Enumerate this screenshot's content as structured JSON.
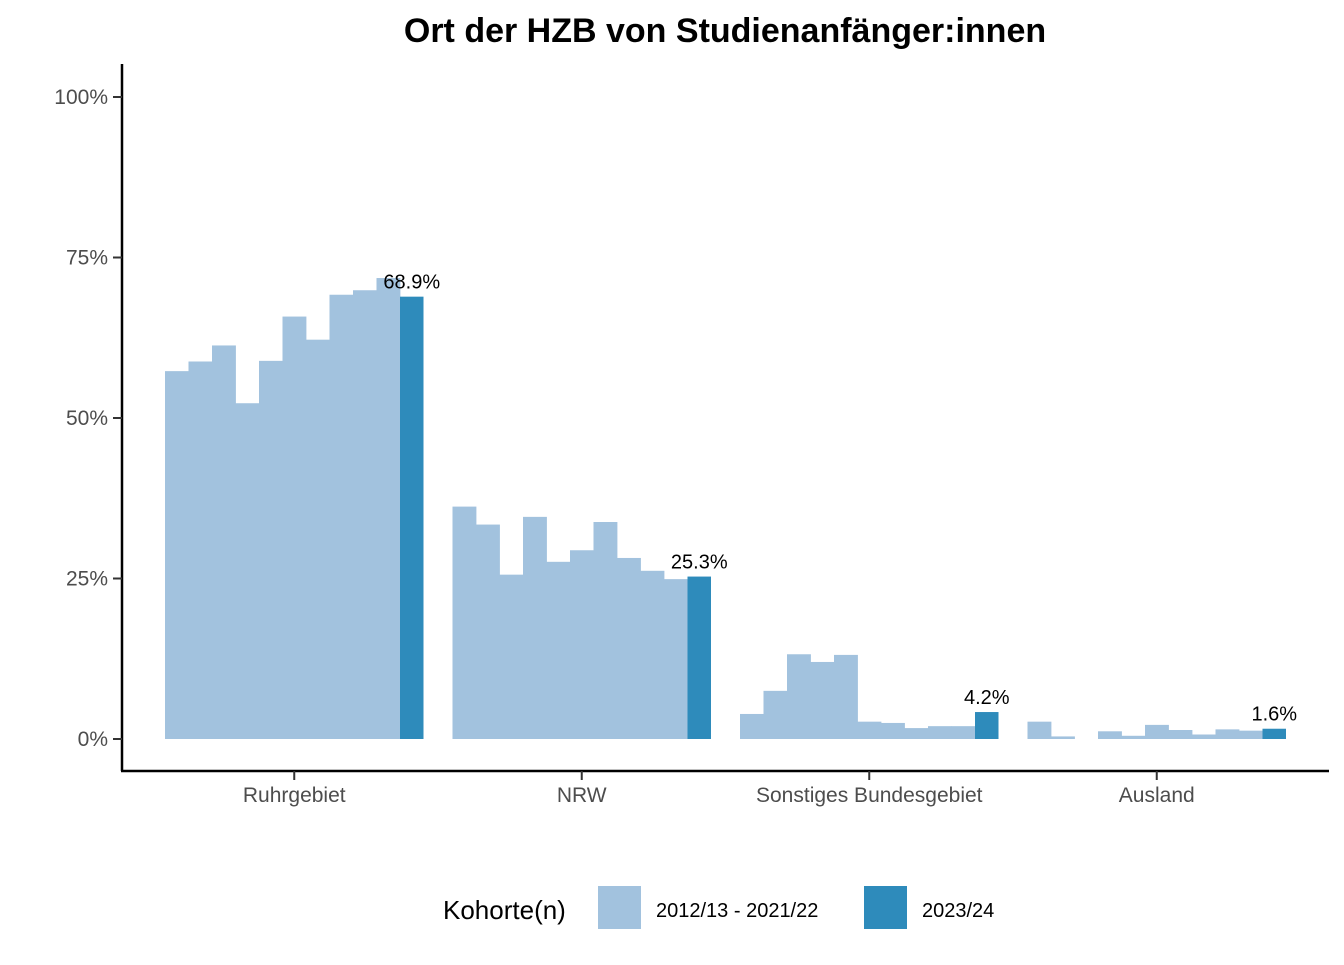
{
  "chart_data": {
    "type": "bar",
    "title": "Ort der HZB von Studienanfänger:innen",
    "xlabel": "",
    "ylabel": "",
    "ylim": [
      0,
      1.05
    ],
    "y_ticks": [
      {
        "value": 0,
        "label": "0%"
      },
      {
        "value": 0.25,
        "label": "25%"
      },
      {
        "value": 0.5,
        "label": "50%"
      },
      {
        "value": 0.75,
        "label": "75%"
      },
      {
        "value": 1.0,
        "label": "100%"
      }
    ],
    "grid": false,
    "legend_position": "bottom",
    "legend_title": "Kohorte(n)",
    "colors": {
      "history": "#a2c2de",
      "current": "#2e8bbb",
      "axis": "#000000"
    },
    "categories": [
      "Ruhrgebiet",
      "NRW",
      "Sonstiges Bundesgebiet",
      "Ausland"
    ],
    "series": [
      {
        "name": "2012/13 - 2021/22",
        "values": [
          [
            0.573,
            0.588,
            0.613,
            0.523,
            0.589,
            0.658,
            0.622,
            0.692,
            0.699,
            0.718
          ],
          [
            0.362,
            0.334,
            0.256,
            0.346,
            0.276,
            0.294,
            0.338,
            0.282,
            0.262,
            0.249
          ],
          [
            0.039,
            0.075,
            0.132,
            0.12,
            0.131,
            0.027,
            0.025,
            0.017,
            0.02,
            0.02
          ],
          [
            0.027,
            0.004,
            0.0,
            0.012,
            0.005,
            0.022,
            0.014,
            0.007,
            0.015,
            0.013
          ]
        ]
      },
      {
        "name": "2023/24",
        "values": [
          0.689,
          0.253,
          0.042,
          0.016
        ],
        "labels": [
          "68.9%",
          "25.3%",
          "4.2%",
          "1.6%"
        ]
      }
    ]
  }
}
